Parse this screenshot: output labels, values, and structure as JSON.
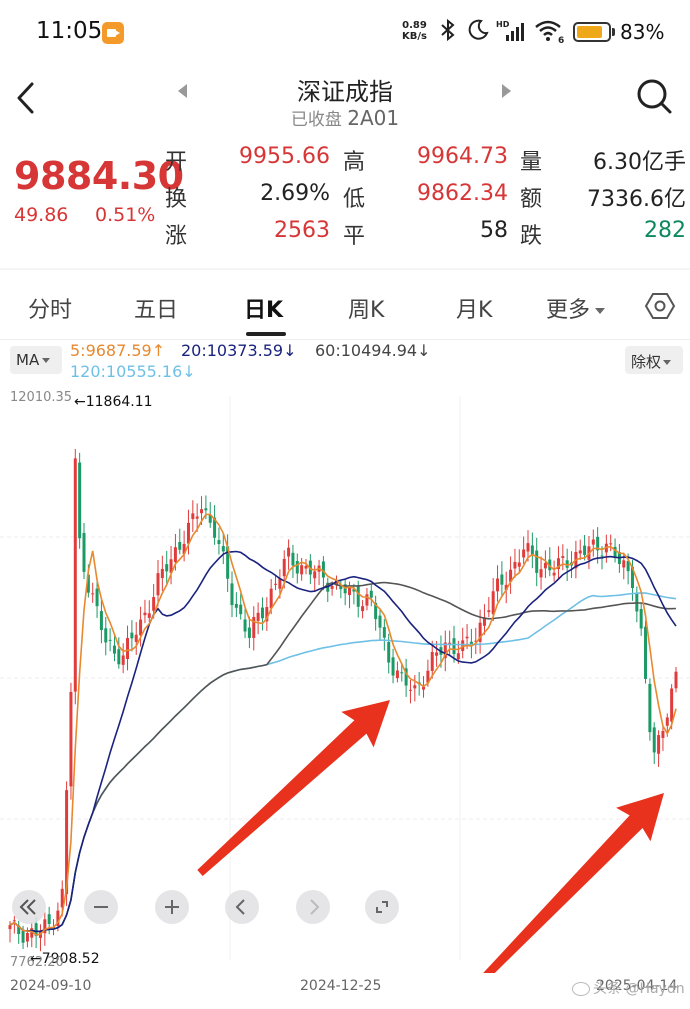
{
  "status": {
    "time": "11:05",
    "net_speed_value": "0.89",
    "net_speed_unit": "KB/s",
    "battery_pct": "83%",
    "battery_level": 0.83,
    "hd_badge": "HD",
    "wifi_badge": "6"
  },
  "header": {
    "title": "深证成指",
    "status_text": "已收盘",
    "code": "2A01"
  },
  "quote": {
    "price": "9884.30",
    "change_abs": "49.86",
    "change_pct": "0.51%",
    "rows": [
      [
        {
          "label": "开",
          "value": "9955.66",
          "tone": "red"
        },
        {
          "label": "高",
          "value": "9964.73",
          "tone": "red"
        },
        {
          "label": "量",
          "value": "6.30亿手",
          "tone": "dark"
        }
      ],
      [
        {
          "label": "换",
          "value": "2.69%",
          "tone": "dark"
        },
        {
          "label": "低",
          "value": "9862.34",
          "tone": "red"
        },
        {
          "label": "额",
          "value": "7336.6亿",
          "tone": "dark"
        }
      ],
      [
        {
          "label": "涨",
          "value": "2563",
          "tone": "red"
        },
        {
          "label": "平",
          "value": "58",
          "tone": "dark"
        },
        {
          "label": "跌",
          "value": "282",
          "tone": "green"
        }
      ]
    ]
  },
  "tabs": [
    "分时",
    "五日",
    "日K",
    "周K",
    "月K",
    "更多"
  ],
  "active_tab": "日K",
  "ma": {
    "selector_label": "MA",
    "ma5": "5:9687.59↑",
    "ma20": "20:10373.59↓",
    "ma60": "60:10494.94↓",
    "ma120": "120:10555.16↓",
    "adjust_label": "除权",
    "colors": {
      "ma5": "#e8892f",
      "ma20": "#1a237e",
      "ma60": "#555555",
      "ma120": "#6fc0e6"
    }
  },
  "chart": {
    "axis_max": "12010.35",
    "axis_min": "7762.20",
    "max_marker": "←11864.11",
    "min_marker": "←7908.52",
    "dates": [
      "2024-09-10",
      "2024-12-25",
      "2025-04-14"
    ]
  },
  "chart_data": {
    "type": "candlestick",
    "ylim": [
      7762.2,
      12010.35
    ],
    "x": [
      "2024-09-10",
      "2024-12-25",
      "2025-04-14"
    ],
    "high_marker": 11864.11,
    "low_marker": 7908.52,
    "series": [
      {
        "name": "MA5",
        "value": 9687.59
      },
      {
        "name": "MA20",
        "value": 10373.59
      },
      {
        "name": "MA60",
        "value": 10494.94
      },
      {
        "name": "MA120",
        "value": 10555.16
      }
    ]
  },
  "zoom_controls": [
    "collapse-left",
    "zoom-out",
    "zoom-in",
    "scroll-left",
    "scroll-right",
    "fullscreen"
  ],
  "watermark": "头条 @Haydn"
}
